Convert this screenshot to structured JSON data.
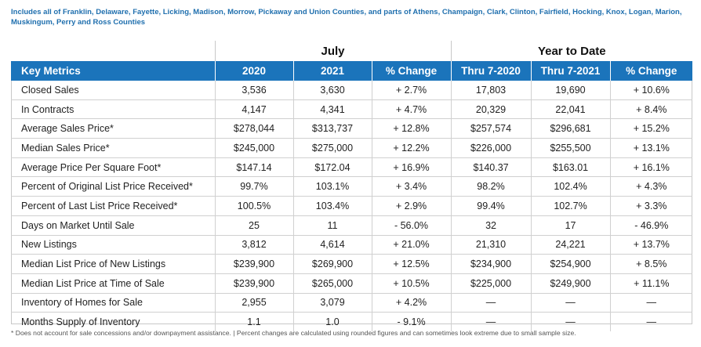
{
  "subtitle": "Includes all of Franklin, Delaware, Fayette, Licking, Madison, Morrow, Pickaway and Union Counties, and parts of Athens, Champaign, Clark, Clinton, Fairfield, Hocking, Knox, Logan, Marion, Muskingum, Perry and Ross Counties",
  "groups": {
    "july": "July",
    "ytd": "Year to Date"
  },
  "headers": [
    "Key Metrics",
    "2020",
    "2021",
    "% Change",
    "Thru 7-2020",
    "Thru 7-2021",
    "% Change"
  ],
  "rows": [
    [
      "Closed Sales",
      "3,536",
      "3,630",
      "+ 2.7%",
      "17,803",
      "19,690",
      "+ 10.6%"
    ],
    [
      "In Contracts",
      "4,147",
      "4,341",
      "+ 4.7%",
      "20,329",
      "22,041",
      "+ 8.4%"
    ],
    [
      "Average Sales Price*",
      "$278,044",
      "$313,737",
      "+ 12.8%",
      "$257,574",
      "$296,681",
      "+ 15.2%"
    ],
    [
      "Median Sales Price*",
      "$245,000",
      "$275,000",
      "+ 12.2%",
      "$226,000",
      "$255,500",
      "+ 13.1%"
    ],
    [
      "Average Price Per Square Foot*",
      "$147.14",
      "$172.04",
      "+ 16.9%",
      "$140.37",
      "$163.01",
      "+ 16.1%"
    ],
    [
      "Percent of Original List Price Received*",
      "99.7%",
      "103.1%",
      "+ 3.4%",
      "98.2%",
      "102.4%",
      "+ 4.3%"
    ],
    [
      "Percent of Last List Price Received*",
      "100.5%",
      "103.4%",
      "+ 2.9%",
      "99.4%",
      "102.7%",
      "+ 3.3%"
    ],
    [
      "Days on Market Until Sale",
      "25",
      "11",
      "- 56.0%",
      "32",
      "17",
      "- 46.9%"
    ],
    [
      "New Listings",
      "3,812",
      "4,614",
      "+ 21.0%",
      "21,310",
      "24,221",
      "+ 13.7%"
    ],
    [
      "Median List Price of New Listings",
      "$239,900",
      "$269,900",
      "+ 12.5%",
      "$234,900",
      "$254,900",
      "+ 8.5%"
    ],
    [
      "Median List Price at Time of Sale",
      "$239,900",
      "$265,000",
      "+ 10.5%",
      "$225,000",
      "$249,900",
      "+ 11.1%"
    ],
    [
      "Inventory of Homes for Sale",
      "2,955",
      "3,079",
      "+ 4.2%",
      "—",
      "—",
      "—"
    ],
    [
      "Months Supply of Inventory",
      "1.1",
      "1.0",
      "- 9.1%",
      "—",
      "—",
      "—"
    ]
  ],
  "footnote": "* Does not account for sale concessions and/or downpayment assistance. | Percent changes are calculated using rounded figures and can sometimes look extreme due to small sample size."
}
